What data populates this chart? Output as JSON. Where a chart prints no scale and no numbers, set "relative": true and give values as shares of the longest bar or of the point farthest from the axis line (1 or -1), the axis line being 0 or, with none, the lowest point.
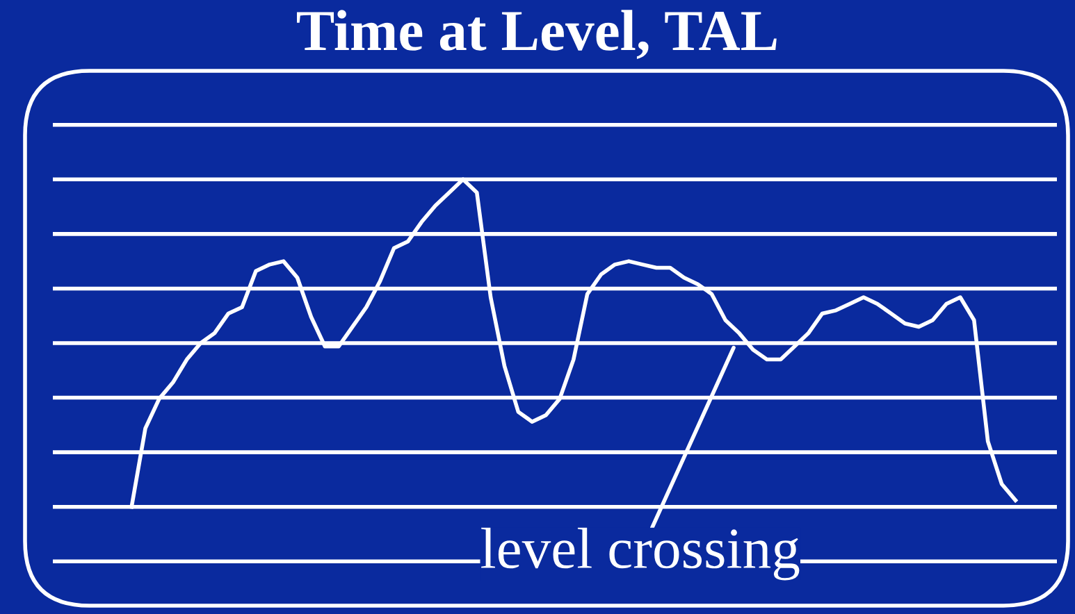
{
  "chart_data": {
    "type": "line",
    "title": "Time at Level, TAL",
    "relative": true,
    "grid": "y",
    "marker": "none",
    "line_style": "solid",
    "categories": [
      null,
      null,
      null,
      null,
      null,
      null,
      null,
      null,
      null,
      null,
      null,
      null,
      null,
      null,
      null,
      null,
      null,
      null,
      null,
      null,
      null,
      null,
      null,
      null,
      null,
      null,
      null,
      null,
      null,
      null,
      null,
      null,
      null,
      null,
      null,
      null,
      null,
      null,
      null,
      null,
      null,
      null,
      null,
      null,
      null,
      null,
      null,
      null,
      null,
      null,
      null,
      null,
      null,
      null,
      null,
      null,
      null,
      null,
      null,
      null,
      null,
      null,
      null,
      null,
      null
    ],
    "series": [
      {
        "color": "#ffffff",
        "values": [
          0,
          0.24,
          0.33,
          0.38,
          0.45,
          0.5,
          0.53,
          0.59,
          0.61,
          0.72,
          0.74,
          0.75,
          0.7,
          0.58,
          0.49,
          0.49,
          0.55,
          0.61,
          0.69,
          0.79,
          0.81,
          0.87,
          0.92,
          0.96,
          1.0,
          0.96,
          0.64,
          0.43,
          0.29,
          0.26,
          0.28,
          0.33,
          0.45,
          0.65,
          0.71,
          0.74,
          0.75,
          0.74,
          0.73,
          0.73,
          0.7,
          0.68,
          0.65,
          0.57,
          0.53,
          0.48,
          0.45,
          0.45,
          0.49,
          0.53,
          0.59,
          0.6,
          0.62,
          0.64,
          0.62,
          0.59,
          0.56,
          0.55,
          0.57,
          0.62,
          0.64,
          0.57,
          0.2,
          0.07,
          0.02
        ]
      }
    ],
    "annotations": [
      "level crossing"
    ]
  }
}
